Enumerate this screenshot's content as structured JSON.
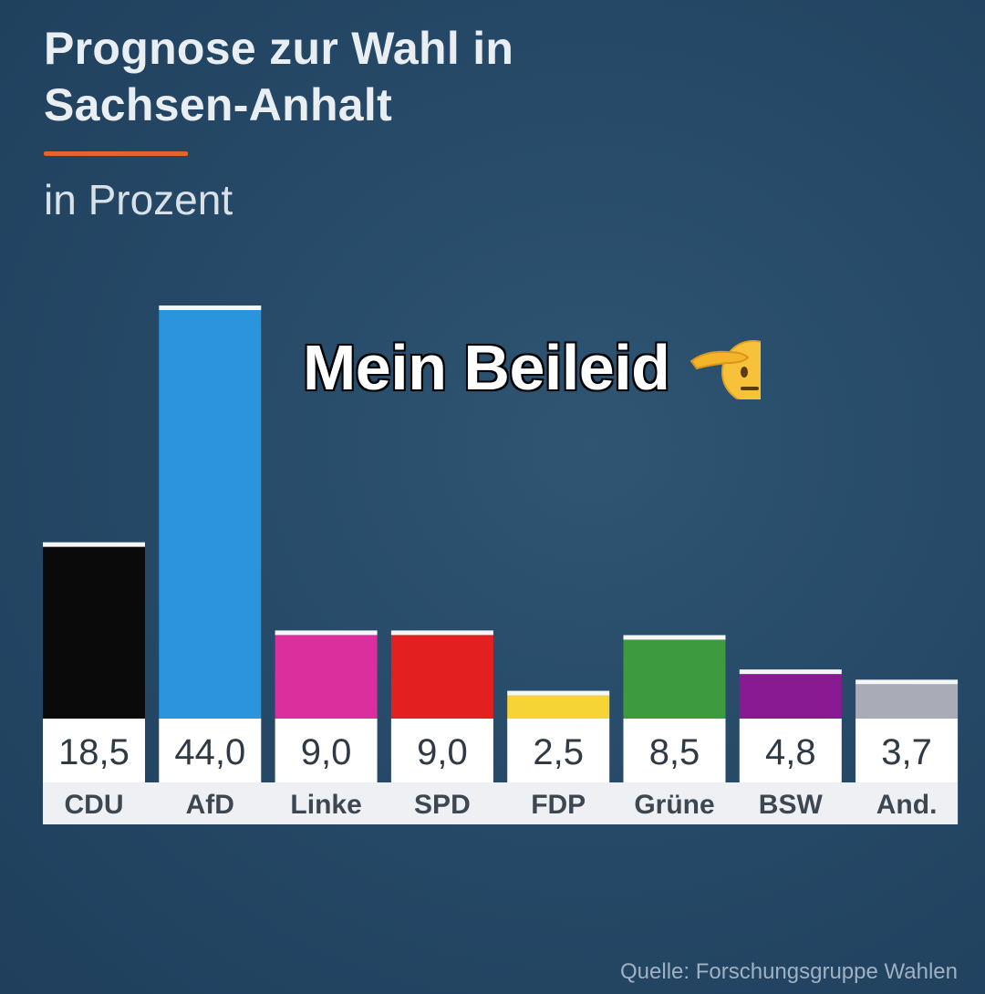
{
  "header": {
    "title_line1": "Prognose zur Wahl in",
    "title_line2": "Sachsen-Anhalt",
    "subtitle": "in Prozent",
    "accent_color": "#e8622c"
  },
  "overlay": {
    "caption": "Mein Beileid",
    "emoji": "saluting-face-icon"
  },
  "source": "Quelle: Forschungsgruppe Wahlen",
  "chart_data": {
    "type": "bar",
    "title": "Prognose zur Wahl in Sachsen-Anhalt",
    "subtitle": "in Prozent",
    "categories": [
      "CDU",
      "AfD",
      "Linke",
      "SPD",
      "FDP",
      "Grüne",
      "BSW",
      "And."
    ],
    "values": [
      18.5,
      44.0,
      9.0,
      9.0,
      2.5,
      8.5,
      4.8,
      3.7
    ],
    "value_labels": [
      "18,5",
      "44,0",
      "9,0",
      "9,0",
      "2,5",
      "8,5",
      "4,8",
      "3,7"
    ],
    "colors": [
      "#0a0a0a",
      "#2a95dc",
      "#da2f9c",
      "#e41f1f",
      "#f7d436",
      "#3e9a3e",
      "#8a1a92",
      "#a9acb7"
    ],
    "ylim": [
      0,
      44.0
    ],
    "grid": false,
    "legend": "none"
  }
}
